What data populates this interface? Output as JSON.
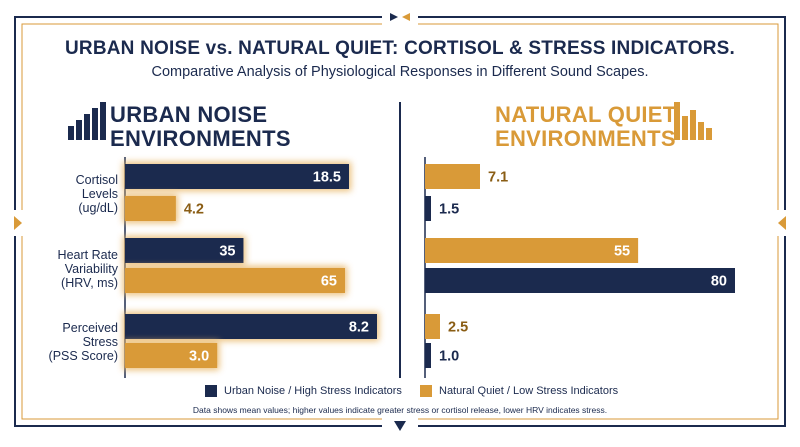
{
  "title": "URBAN NOISE vs. NATURAL QUIET: CORTISOL & STRESS INDICATORS.",
  "subtitle": "Comparative Analysis of Physiological Responses in Different Sound Scapes.",
  "colors": {
    "navy": "#1b2a4e",
    "gold": "#d99a38",
    "gold_light": "#e9b86a"
  },
  "icons": {
    "left": "bar-chart-icon",
    "right": "bar-chart-icon"
  },
  "chart_data": {
    "type": "bar",
    "categories": [
      "Cortisol Levels (ug/dL)",
      "Heart Rate Variability (HRV, ms)",
      "Perceived Stress (PSS Score)"
    ],
    "category_label_lines": [
      [
        "Cortisol",
        "Levels",
        "(ug/dL)"
      ],
      [
        "Heart Rate",
        "Variability",
        "(HRV, ms)"
      ],
      [
        "Perceived",
        "Stress",
        "(PSS Score)"
      ]
    ],
    "panels": [
      {
        "title_lines": [
          "URBAN NOISE",
          "ENVIRONMENTS"
        ],
        "bars": [
          {
            "category": "Cortisol Levels (ug/dL)",
            "value": 18.5,
            "label": "18.5",
            "color": "navy"
          },
          {
            "category": "Cortisol Levels (ug/dL)",
            "value": 4.2,
            "label": "4.2",
            "color": "gold"
          },
          {
            "category": "Heart Rate Variability (HRV, ms)",
            "value": 35,
            "label": "35",
            "color": "navy"
          },
          {
            "category": "Heart Rate Variability (HRV, ms)",
            "value": 65,
            "label": "65",
            "color": "gold"
          },
          {
            "category": "Perceived Stress (PSS Score)",
            "value": 8.2,
            "label": "8.2",
            "color": "navy"
          },
          {
            "category": "Perceived Stress (PSS Score)",
            "value": 3.0,
            "label": "3.0",
            "color": "gold"
          }
        ]
      },
      {
        "title_lines": [
          "NATURAL QUIET",
          "ENVIRONMENTS"
        ],
        "bars": [
          {
            "category": "Cortisol Levels (ug/dL)",
            "value": 7.1,
            "label": "7.1",
            "color": "gold"
          },
          {
            "category": "Cortisol Levels (ug/dL)",
            "value": 1.5,
            "label": "1.5",
            "color": "navy"
          },
          {
            "category": "Heart Rate Variability (HRV, ms)",
            "value": 55,
            "label": "55",
            "color": "gold"
          },
          {
            "category": "Heart Rate Variability (HRV, ms)",
            "value": 80,
            "label": "80",
            "color": "navy"
          },
          {
            "category": "Perceived Stress (PSS Score)",
            "value": 2.5,
            "label": "2.5",
            "color": "gold"
          },
          {
            "category": "Perceived Stress (PSS Score)",
            "value": 1.0,
            "label": "1.0",
            "color": "navy"
          }
        ]
      }
    ],
    "legend": [
      {
        "label": "Urban Noise / High Stress Indicators",
        "color": "navy"
      },
      {
        "label": "Natural Quiet / Low Stress Indicators",
        "color": "gold"
      }
    ],
    "legend_position": "bottom",
    "grid": false
  },
  "footnote": "Data shows mean values; higher values indicate greater stress or cortisol release, lower HRV indicates stress."
}
